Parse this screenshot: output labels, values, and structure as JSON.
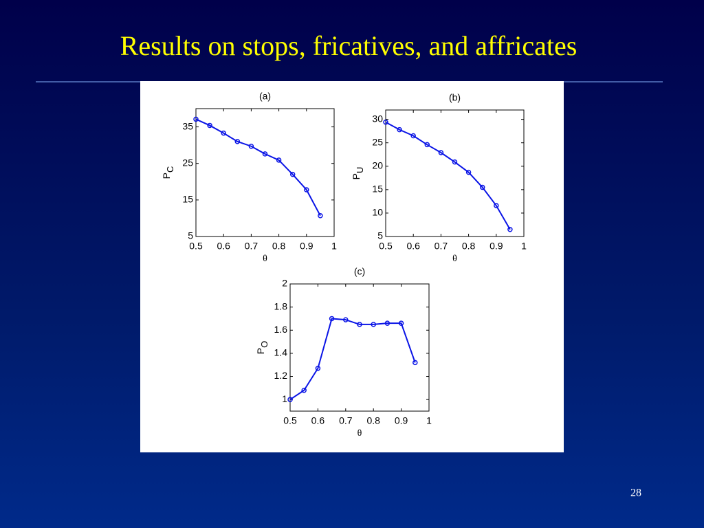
{
  "slide": {
    "title": "Results on stops, fricatives, and affricates",
    "page_number": "28"
  },
  "chart_data": [
    {
      "type": "line",
      "title": "(a)",
      "xlabel": "θ",
      "ylabel": "P",
      "ylabel_subscript": "C",
      "x": [
        0.5,
        0.55,
        0.6,
        0.65,
        0.7,
        0.75,
        0.8,
        0.85,
        0.9,
        0.95
      ],
      "values": [
        37.1,
        35.4,
        33.3,
        31.0,
        29.7,
        27.6,
        25.9,
        22.0,
        17.8,
        10.7
      ],
      "color": "#0a14e6",
      "xlim": [
        0.5,
        1
      ],
      "xticks": [
        0.5,
        0.6,
        0.7,
        0.8,
        0.9,
        1
      ],
      "ylim": [
        5,
        40
      ],
      "yticks": [
        5,
        15,
        25,
        35
      ]
    },
    {
      "type": "line",
      "title": "(b)",
      "xlabel": "θ",
      "ylabel": "P",
      "ylabel_subscript": "U",
      "x": [
        0.5,
        0.55,
        0.6,
        0.65,
        0.7,
        0.75,
        0.8,
        0.85,
        0.9,
        0.95
      ],
      "values": [
        29.4,
        27.8,
        26.5,
        24.6,
        22.9,
        20.9,
        18.7,
        15.5,
        11.6,
        6.5
      ],
      "color": "#0a14e6",
      "xlim": [
        0.5,
        1
      ],
      "xticks": [
        0.5,
        0.6,
        0.7,
        0.8,
        0.9,
        1
      ],
      "ylim": [
        5,
        32
      ],
      "yticks": [
        5,
        10,
        15,
        20,
        25,
        30
      ]
    },
    {
      "type": "line",
      "title": "(c)",
      "xlabel": "θ",
      "ylabel": "P",
      "ylabel_subscript": "O",
      "x": [
        0.5,
        0.55,
        0.6,
        0.65,
        0.7,
        0.75,
        0.8,
        0.85,
        0.9,
        0.95
      ],
      "values": [
        1.0,
        1.08,
        1.27,
        1.7,
        1.69,
        1.65,
        1.65,
        1.66,
        1.66,
        1.32
      ],
      "color": "#0a14e6",
      "xlim": [
        0.5,
        1
      ],
      "xticks": [
        0.5,
        0.6,
        0.7,
        0.8,
        0.9,
        1
      ],
      "ylim": [
        0.9,
        2
      ],
      "yticks": [
        1,
        1.2,
        1.4,
        1.6,
        1.8,
        2
      ]
    }
  ]
}
